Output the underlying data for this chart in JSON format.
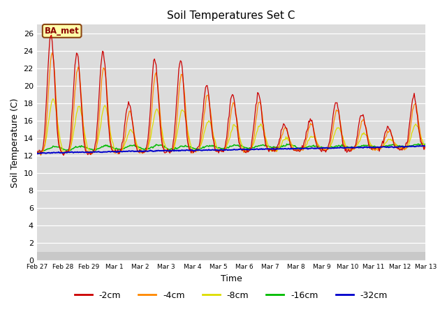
{
  "title": "Soil Temperatures Set C",
  "xlabel": "Time",
  "ylabel": "Soil Temperature (C)",
  "ylim": [
    0,
    27
  ],
  "yticks": [
    0,
    2,
    4,
    6,
    8,
    10,
    12,
    14,
    16,
    18,
    20,
    22,
    24,
    26
  ],
  "annotation_text": "BA_met",
  "colors": {
    "-2cm": "#cc0000",
    "-4cm": "#ff8800",
    "-8cm": "#dddd00",
    "-16cm": "#00bb00",
    "-32cm": "#0000cc"
  },
  "xtick_labels": [
    "Feb 27",
    "Feb 28",
    "Feb 29",
    "Mar 1",
    "Mar 2",
    "Mar 3",
    "Mar 4",
    "Mar 5",
    "Mar 6",
    "Mar 7",
    "Mar 8",
    "Mar 9",
    "Mar 10",
    "Mar 11",
    "Mar 12",
    "Mar 13"
  ],
  "time_points": 480,
  "days": 15
}
